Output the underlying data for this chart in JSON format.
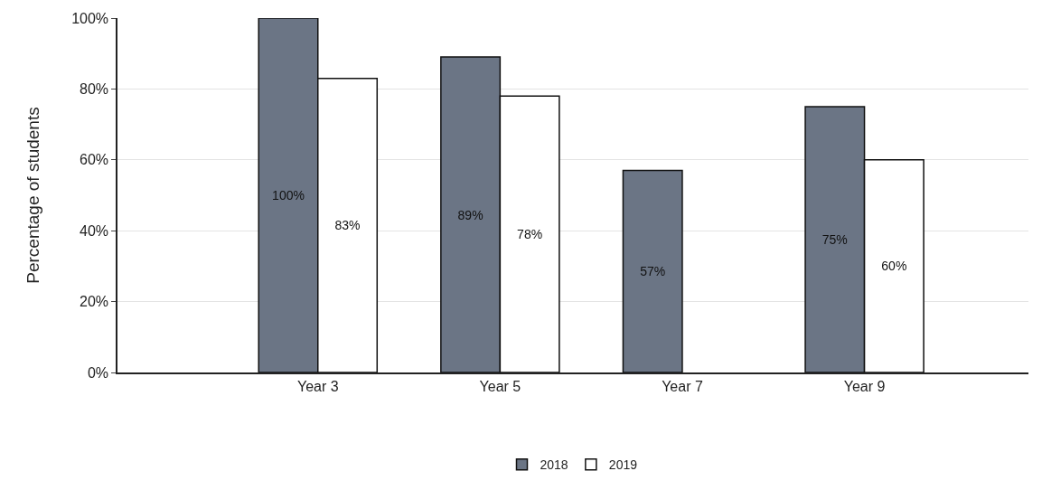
{
  "chart_data": {
    "type": "bar",
    "ylabel": "Percentage of students",
    "categories": [
      "Year 3",
      "Year 5",
      "Year 7",
      "Year 9"
    ],
    "series": [
      {
        "name": "2018",
        "color": "#6b7585",
        "values": [
          100,
          89,
          57,
          75
        ],
        "value_labels": [
          "100%",
          "89%",
          "57%",
          "75%"
        ]
      },
      {
        "name": "2019",
        "color": "#ffffff",
        "values": [
          83,
          78,
          null,
          60
        ],
        "value_labels": [
          "83%",
          "78%",
          null,
          "60%"
        ]
      }
    ],
    "ylim": [
      0,
      100
    ],
    "yticks": [
      {
        "value": 0,
        "label": "0%"
      },
      {
        "value": 20,
        "label": "20%"
      },
      {
        "value": 40,
        "label": "40%"
      },
      {
        "value": 60,
        "label": "60%"
      },
      {
        "value": 80,
        "label": "80%"
      },
      {
        "value": 100,
        "label": "100%"
      }
    ],
    "grid": "y",
    "legend": "bottom"
  }
}
